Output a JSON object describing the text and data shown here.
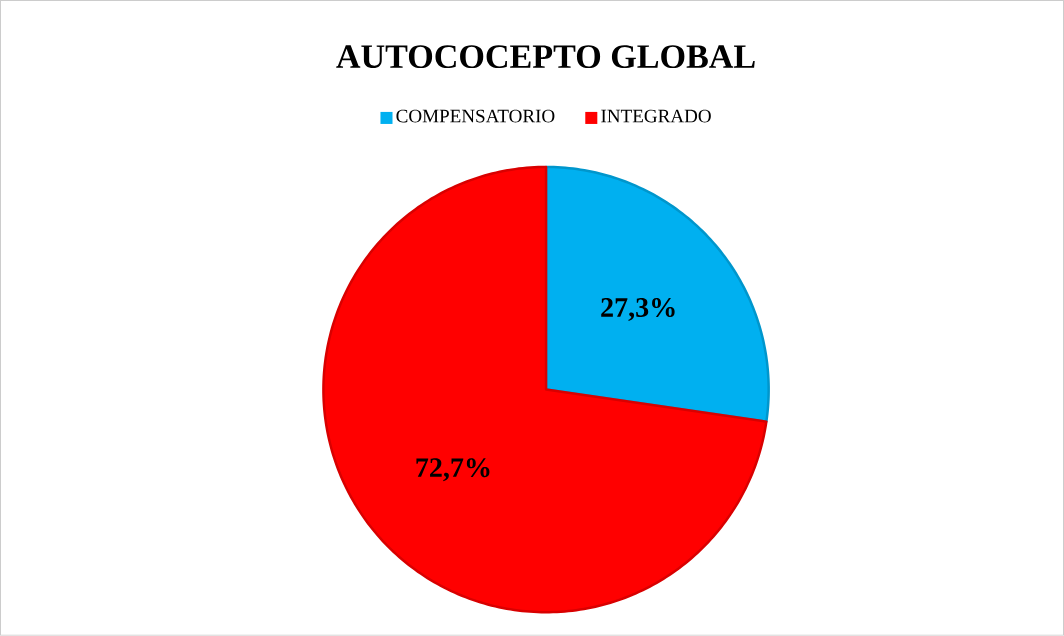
{
  "chart_data": {
    "type": "pie",
    "title": "AUTOCOCEPTO GLOBAL",
    "categories": [
      "COMPENSATORIO",
      "INTEGRADO"
    ],
    "values": [
      27.3,
      72.7
    ],
    "colors": [
      "#00b0f0",
      "#ff0000"
    ],
    "value_labels": [
      "27,3%",
      "72,7%"
    ],
    "legend": "top"
  }
}
